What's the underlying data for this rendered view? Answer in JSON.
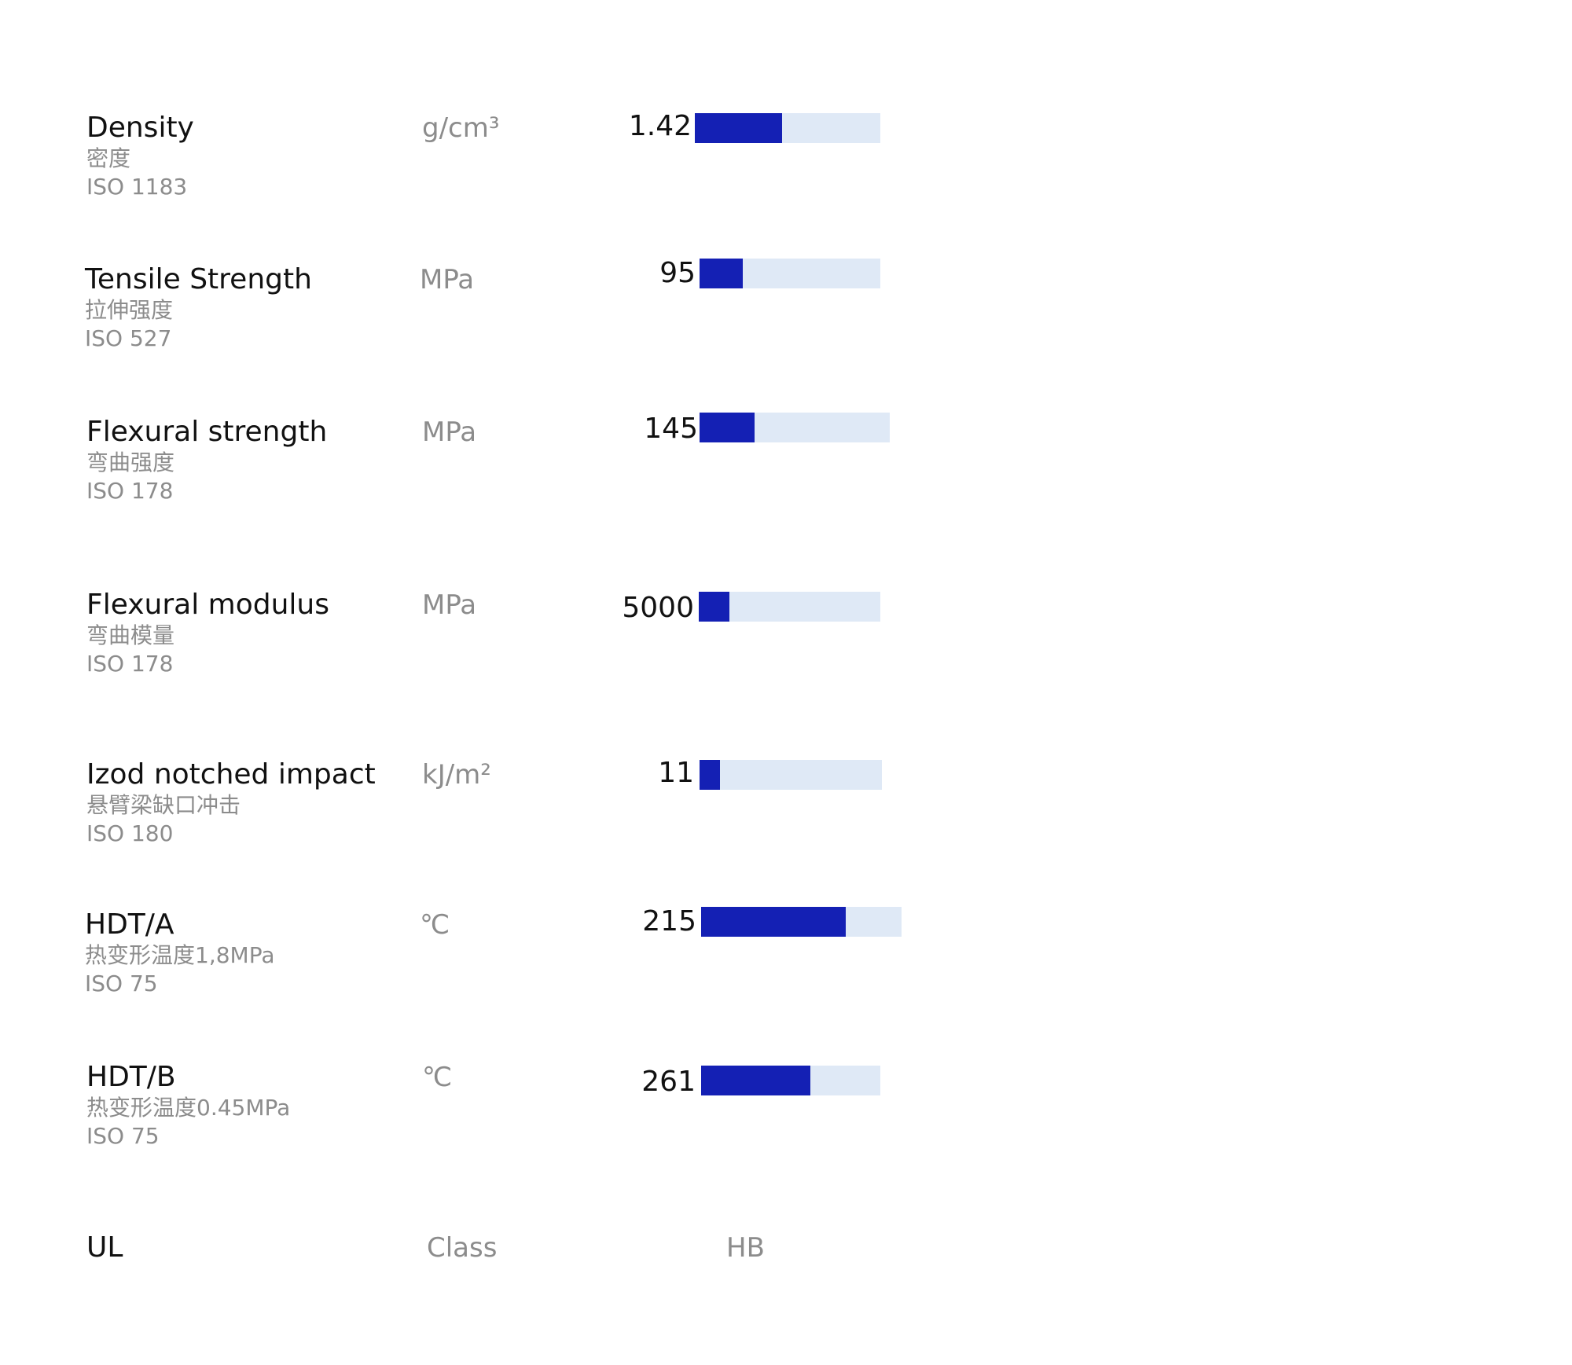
{
  "colors": {
    "bar_fill": "#1420b4",
    "bar_track": "#dfe9f6",
    "primary_text": "#111111",
    "secondary_text": "#8c8c8c"
  },
  "properties": [
    {
      "name": "Density",
      "name_cn": "密度",
      "standard": "ISO 1183",
      "unit": "g/cm³",
      "value": "1.42",
      "bar_fill_fraction": 0.47
    },
    {
      "name": "Tensile Strength",
      "name_cn": "拉伸强度",
      "standard": "ISO 527",
      "unit": "MPa",
      "value": "95",
      "bar_fill_fraction": 0.24
    },
    {
      "name": "Flexural strength",
      "name_cn": "弯曲强度",
      "standard": "ISO 178",
      "unit": "MPa",
      "value": "145",
      "bar_fill_fraction": 0.29
    },
    {
      "name": "Flexural modulus",
      "name_cn": "弯曲模量",
      "standard": "ISO 178",
      "unit": "MPa",
      "value": "5000",
      "bar_fill_fraction": 0.17
    },
    {
      "name": "Izod notched impact",
      "name_cn": "悬臂梁缺口冲击",
      "standard": "ISO 180",
      "unit": "kJ/m²",
      "value": "11",
      "bar_fill_fraction": 0.11
    },
    {
      "name": "HDT/A",
      "name_cn": "热变形温度1,8MPa",
      "standard": "ISO 75",
      "unit": "℃",
      "value": "215",
      "bar_fill_fraction": 0.72
    },
    {
      "name": "HDT/B",
      "name_cn": "热变形温度0.45MPa",
      "standard": "ISO 75",
      "unit": "℃",
      "value": "261",
      "bar_fill_fraction": 0.61
    }
  ],
  "ul": {
    "name": "UL",
    "unit": "Class",
    "value": "HB"
  }
}
